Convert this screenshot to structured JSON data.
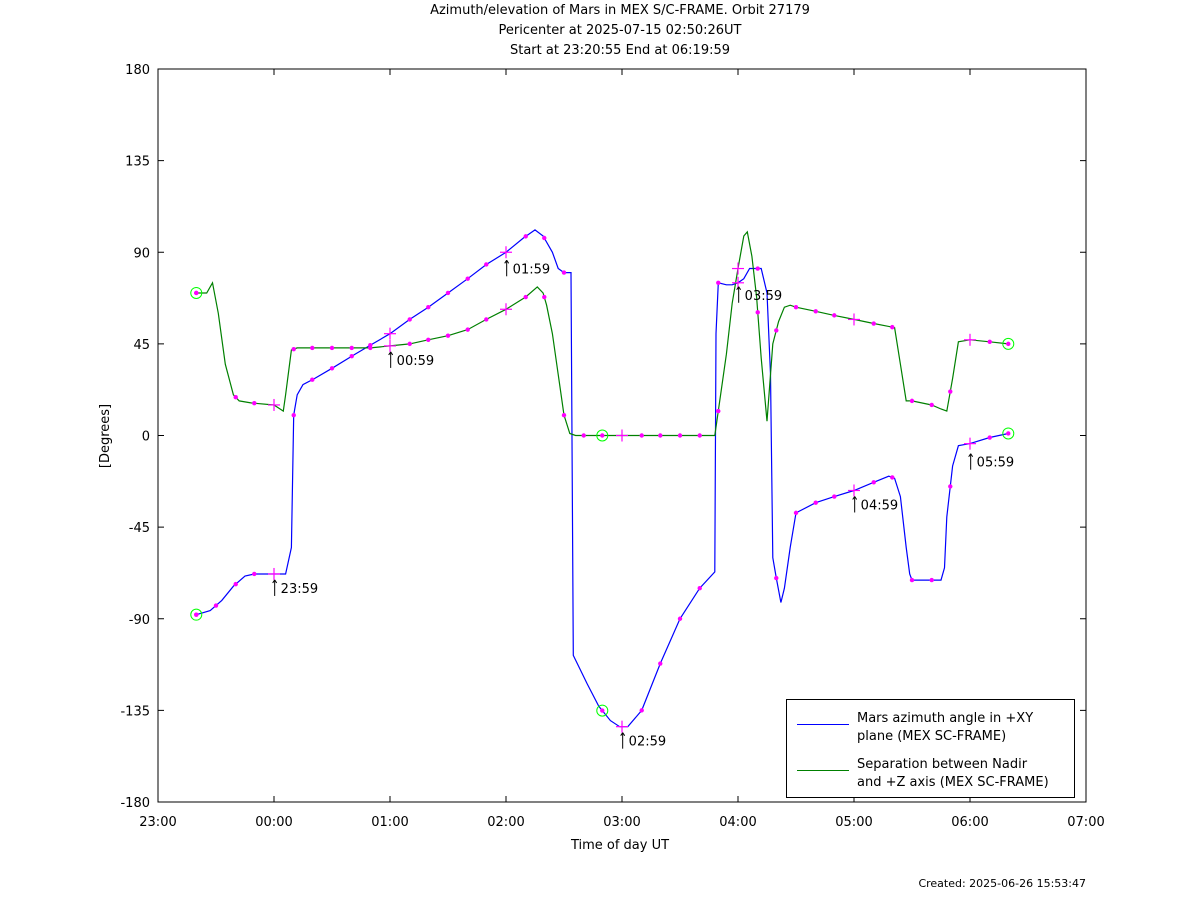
{
  "header": {
    "title": "Azimuth/elevation of Mars in MEX S/C-FRAME.  Orbit 27179",
    "pericenter": "Pericenter at 2025-07-15 02:50:26UT",
    "startend": "Start at 23:20:55 End at 06:19:59"
  },
  "footer": {
    "created": "Created: 2025-06-26 15:53:47"
  },
  "colors": {
    "azimuth": "#0000ff",
    "separation": "#008000",
    "marker": "#ff00ff",
    "endpoint": "#00ff00"
  },
  "chart_data": {
    "type": "line",
    "xlabel": "Time of day UT",
    "ylabel": "[Degrees]",
    "xlim": [
      23.0,
      31.0
    ],
    "ylim": [
      -180,
      180
    ],
    "xticks": [
      {
        "v": 23,
        "label": "23:00"
      },
      {
        "v": 24,
        "label": "00:00"
      },
      {
        "v": 25,
        "label": "01:00"
      },
      {
        "v": 26,
        "label": "02:00"
      },
      {
        "v": 27,
        "label": "03:00"
      },
      {
        "v": 28,
        "label": "04:00"
      },
      {
        "v": 29,
        "label": "05:00"
      },
      {
        "v": 30,
        "label": "06:00"
      },
      {
        "v": 31,
        "label": "07:00"
      }
    ],
    "yticks": [
      -180,
      -135,
      -90,
      -45,
      0,
      45,
      90,
      135,
      180
    ],
    "grid": false,
    "legend_position": "bottom-right",
    "series": [
      {
        "name": "Mars azimuth angle in +XY plane (MEX SC-FRAME)",
        "legend_lines": [
          "Mars azimuth angle in +XY",
          "plane (MEX SC-FRAME)"
        ],
        "color": "#0000ff",
        "x": [
          23.33,
          23.45,
          23.55,
          23.65,
          23.75,
          23.83,
          23.9,
          24.0,
          24.1,
          24.15,
          24.17,
          24.2,
          24.25,
          24.35,
          24.5,
          24.7,
          24.85,
          25.0,
          25.17,
          25.33,
          25.5,
          25.67,
          25.83,
          26.0,
          26.15,
          26.25,
          26.32,
          26.4,
          26.45,
          26.5,
          26.53,
          26.56,
          26.58,
          26.7,
          26.8,
          26.9,
          26.98,
          27.05,
          27.17,
          27.33,
          27.5,
          27.67,
          27.8,
          27.81,
          27.83,
          27.9,
          27.95,
          28.0,
          28.05,
          28.1,
          28.15,
          28.2,
          28.25,
          28.28,
          28.3,
          28.33,
          28.37,
          28.4,
          28.45,
          28.5,
          28.67,
          28.83,
          29.0,
          29.17,
          29.3,
          29.35,
          29.4,
          29.45,
          29.48,
          29.5,
          29.67,
          29.75,
          29.78,
          29.8,
          29.85,
          29.9,
          30.0,
          30.17,
          30.33
        ],
        "y": [
          -88,
          -86,
          -81,
          -74,
          -69,
          -68,
          -68,
          -68,
          -68,
          -55,
          10,
          20,
          25,
          28,
          33,
          40,
          45,
          50,
          57,
          63,
          70,
          77,
          84,
          90,
          97,
          101,
          98,
          90,
          82,
          80,
          80,
          80,
          -108,
          -122,
          -133,
          -140,
          -143,
          -143,
          -135,
          -112,
          -90,
          -75,
          -67,
          50,
          75,
          74,
          74,
          75,
          77,
          82,
          82,
          82,
          70,
          30,
          -60,
          -70,
          -82,
          -75,
          -55,
          -38,
          -33,
          -30,
          -27,
          -23,
          -20,
          -21,
          -30,
          -55,
          -68,
          -71,
          -71,
          -71,
          -65,
          -40,
          -15,
          -5,
          -4,
          -1,
          1
        ]
      },
      {
        "name": "Separation between Nadir and +Z axis (MEX SC-FRAME)",
        "legend_lines": [
          "Separation between Nadir",
          "and +Z axis (MEX SC-FRAME)"
        ],
        "color": "#008000",
        "x": [
          23.33,
          23.42,
          23.47,
          23.52,
          23.58,
          23.65,
          23.7,
          23.8,
          24.0,
          24.08,
          24.1,
          24.15,
          24.2,
          24.25,
          24.35,
          24.5,
          24.67,
          24.83,
          25.0,
          25.17,
          25.33,
          25.5,
          25.67,
          25.83,
          26.0,
          26.17,
          26.27,
          26.32,
          26.35,
          26.4,
          26.45,
          26.5,
          26.55,
          26.6,
          26.7,
          26.83,
          27.0,
          27.17,
          27.33,
          27.5,
          27.67,
          27.8,
          27.9,
          27.95,
          28.0,
          28.05,
          28.08,
          28.12,
          28.16,
          28.2,
          28.25,
          28.3,
          28.35,
          28.4,
          28.45,
          28.5,
          28.67,
          28.83,
          29.0,
          29.17,
          29.35,
          29.4,
          29.45,
          29.5,
          29.67,
          29.75,
          29.8,
          29.85,
          29.9,
          30.0,
          30.17,
          30.33
        ],
        "y": [
          70,
          70,
          75,
          60,
          35,
          20,
          17,
          16,
          15,
          12,
          20,
          42,
          43,
          43,
          43,
          43,
          43,
          43,
          44,
          45,
          47,
          49,
          52,
          57,
          62,
          68,
          73,
          70,
          64,
          50,
          30,
          10,
          1,
          0,
          0,
          0,
          0,
          0,
          0,
          0,
          0,
          0,
          40,
          65,
          82,
          98,
          100,
          88,
          68,
          38,
          7,
          45,
          56,
          63,
          64,
          63,
          61,
          59,
          57,
          55,
          53,
          35,
          17,
          17,
          15,
          13,
          12,
          28,
          46,
          47,
          46,
          45
        ]
      }
    ],
    "markers": {
      "azimuth_x": [
        23.33,
        23.5,
        23.67,
        23.83,
        24.17,
        24.33,
        24.5,
        24.67,
        24.83,
        25.17,
        25.33,
        25.5,
        25.67,
        25.83,
        26.17,
        26.33,
        26.5,
        27.17,
        27.33,
        27.5,
        27.67,
        27.83,
        28.17,
        28.33,
        28.5,
        28.67,
        28.83,
        29.17,
        29.33,
        29.5,
        29.67,
        29.83,
        30.17
      ],
      "separation_x": [
        23.33,
        23.67,
        23.83,
        24.17,
        24.33,
        24.5,
        24.67,
        24.83,
        25.17,
        25.33,
        25.5,
        25.67,
        25.83,
        26.17,
        26.33,
        26.5,
        26.67,
        27.17,
        27.33,
        27.5,
        27.67,
        27.83,
        28.17,
        28.33,
        28.5,
        28.67,
        28.83,
        29.17,
        29.33,
        29.5,
        29.67,
        29.83,
        30.17
      ],
      "hour_crosses": [
        {
          "x": 24.0,
          "series": 0
        },
        {
          "x": 24.0,
          "series": 1
        },
        {
          "x": 25.0,
          "series": 0
        },
        {
          "x": 25.0,
          "series": 1
        },
        {
          "x": 26.0,
          "series": 0
        },
        {
          "x": 26.0,
          "series": 1
        },
        {
          "x": 27.0,
          "series": 0
        },
        {
          "x": 27.0,
          "series": 1
        },
        {
          "x": 28.0,
          "series": 0
        },
        {
          "x": 28.0,
          "series": 1
        },
        {
          "x": 29.0,
          "series": 0
        },
        {
          "x": 29.0,
          "series": 1
        },
        {
          "x": 30.0,
          "series": 0
        },
        {
          "x": 30.0,
          "series": 1
        }
      ],
      "endpoints": [
        {
          "x": 23.33,
          "series": 0
        },
        {
          "x": 23.33,
          "series": 1
        },
        {
          "x": 30.33,
          "series": 0
        },
        {
          "x": 30.33,
          "series": 1
        },
        {
          "x": 26.83,
          "series": 0
        },
        {
          "x": 26.83,
          "series": 1
        }
      ]
    },
    "annotations": [
      {
        "label": "23:59",
        "x": 23.98,
        "y": -68
      },
      {
        "label": "00:59",
        "x": 24.98,
        "y": 44
      },
      {
        "label": "01:59",
        "x": 25.98,
        "y": 89
      },
      {
        "label": "02:59",
        "x": 26.98,
        "y": -143
      },
      {
        "label": "03:59",
        "x": 27.98,
        "y": 76
      },
      {
        "label": "04:59",
        "x": 28.98,
        "y": -27
      },
      {
        "label": "05:59",
        "x": 29.98,
        "y": -6
      }
    ]
  }
}
